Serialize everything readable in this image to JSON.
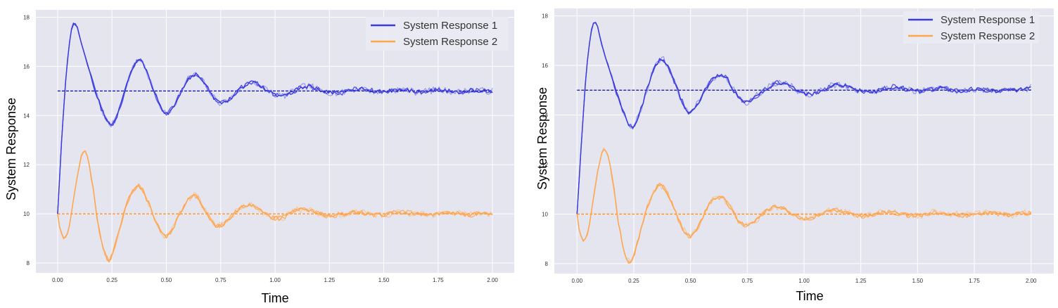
{
  "chart_data": [
    {
      "type": "line",
      "title": "",
      "xlabel": "Time",
      "ylabel": "System Response",
      "xlim": [
        -0.1,
        2.1
      ],
      "ylim": [
        7.6,
        18.3
      ],
      "xticks": [
        "0.00",
        "0.25",
        "0.50",
        "0.75",
        "1.00",
        "1.25",
        "1.50",
        "1.75",
        "2.00"
      ],
      "yticks": [
        "8",
        "10",
        "12",
        "14",
        "16",
        "18"
      ],
      "grid": true,
      "legend_position": "top-right",
      "series": [
        {
          "name": "System Response 1",
          "color": "#3a3ae0",
          "setpoint": 15,
          "points": [
            [
              0.0,
              10.0
            ],
            [
              0.02,
              13.2
            ],
            [
              0.04,
              15.8
            ],
            [
              0.06,
              17.4
            ],
            [
              0.075,
              17.8
            ],
            [
              0.09,
              17.6
            ],
            [
              0.11,
              16.9
            ],
            [
              0.14,
              16.0
            ],
            [
              0.17,
              15.1
            ],
            [
              0.2,
              14.3
            ],
            [
              0.23,
              13.7
            ],
            [
              0.25,
              13.6
            ],
            [
              0.27,
              13.9
            ],
            [
              0.3,
              14.7
            ],
            [
              0.33,
              15.6
            ],
            [
              0.36,
              16.2
            ],
            [
              0.38,
              16.3
            ],
            [
              0.4,
              16.0
            ],
            [
              0.43,
              15.3
            ],
            [
              0.46,
              14.6
            ],
            [
              0.49,
              14.1
            ],
            [
              0.51,
              14.1
            ],
            [
              0.54,
              14.5
            ],
            [
              0.57,
              15.0
            ],
            [
              0.6,
              15.5
            ],
            [
              0.63,
              15.7
            ],
            [
              0.66,
              15.5
            ],
            [
              0.69,
              15.1
            ],
            [
              0.72,
              14.7
            ],
            [
              0.75,
              14.5
            ],
            [
              0.78,
              14.6
            ],
            [
              0.81,
              14.8
            ],
            [
              0.84,
              15.1
            ],
            [
              0.88,
              15.35
            ],
            [
              0.92,
              15.3
            ],
            [
              0.96,
              15.05
            ],
            [
              1.0,
              14.85
            ],
            [
              1.04,
              14.8
            ],
            [
              1.08,
              14.95
            ],
            [
              1.12,
              15.15
            ],
            [
              1.16,
              15.2
            ],
            [
              1.2,
              15.05
            ],
            [
              1.25,
              14.95
            ],
            [
              1.3,
              14.9
            ],
            [
              1.35,
              15.05
            ],
            [
              1.4,
              15.1
            ],
            [
              1.45,
              15.0
            ],
            [
              1.5,
              14.95
            ],
            [
              1.55,
              15.05
            ],
            [
              1.6,
              15.05
            ],
            [
              1.65,
              14.95
            ],
            [
              1.7,
              15.0
            ],
            [
              1.75,
              15.05
            ],
            [
              1.8,
              15.0
            ],
            [
              1.85,
              14.95
            ],
            [
              1.9,
              15.05
            ],
            [
              1.95,
              15.0
            ],
            [
              2.0,
              15.0
            ]
          ]
        },
        {
          "name": "System Response 2",
          "color": "#ffa64d",
          "setpoint": 10,
          "points": [
            [
              0.0,
              10.0
            ],
            [
              0.01,
              9.4
            ],
            [
              0.03,
              8.95
            ],
            [
              0.05,
              9.3
            ],
            [
              0.07,
              10.4
            ],
            [
              0.09,
              11.5
            ],
            [
              0.11,
              12.4
            ],
            [
              0.125,
              12.6
            ],
            [
              0.14,
              12.3
            ],
            [
              0.16,
              11.2
            ],
            [
              0.18,
              9.9
            ],
            [
              0.2,
              8.9
            ],
            [
              0.22,
              8.3
            ],
            [
              0.235,
              8.1
            ],
            [
              0.25,
              8.3
            ],
            [
              0.28,
              9.2
            ],
            [
              0.31,
              10.2
            ],
            [
              0.34,
              10.9
            ],
            [
              0.37,
              11.2
            ],
            [
              0.39,
              11.0
            ],
            [
              0.42,
              10.4
            ],
            [
              0.45,
              9.7
            ],
            [
              0.48,
              9.2
            ],
            [
              0.5,
              9.05
            ],
            [
              0.53,
              9.4
            ],
            [
              0.56,
              10.0
            ],
            [
              0.59,
              10.5
            ],
            [
              0.62,
              10.75
            ],
            [
              0.64,
              10.7
            ],
            [
              0.67,
              10.3
            ],
            [
              0.7,
              9.8
            ],
            [
              0.73,
              9.5
            ],
            [
              0.76,
              9.55
            ],
            [
              0.79,
              9.8
            ],
            [
              0.82,
              10.1
            ],
            [
              0.86,
              10.35
            ],
            [
              0.9,
              10.35
            ],
            [
              0.94,
              10.1
            ],
            [
              0.98,
              9.85
            ],
            [
              1.02,
              9.8
            ],
            [
              1.06,
              9.95
            ],
            [
              1.1,
              10.15
            ],
            [
              1.14,
              10.2
            ],
            [
              1.18,
              10.1
            ],
            [
              1.22,
              9.95
            ],
            [
              1.26,
              9.9
            ],
            [
              1.3,
              10.0
            ],
            [
              1.35,
              10.05
            ],
            [
              1.4,
              10.05
            ],
            [
              1.45,
              9.95
            ],
            [
              1.5,
              9.95
            ],
            [
              1.55,
              10.05
            ],
            [
              1.6,
              10.05
            ],
            [
              1.65,
              10.0
            ],
            [
              1.7,
              9.95
            ],
            [
              1.75,
              10.0
            ],
            [
              1.8,
              10.05
            ],
            [
              1.85,
              10.0
            ],
            [
              1.9,
              9.95
            ],
            [
              1.95,
              10.05
            ],
            [
              2.0,
              10.0
            ]
          ]
        }
      ]
    },
    {
      "type": "line",
      "title": "",
      "xlabel": "Time",
      "ylabel": "System Response",
      "xlim": [
        -0.1,
        2.1
      ],
      "ylim": [
        7.6,
        18.3
      ],
      "xticks": [
        "0.00",
        "0.25",
        "0.50",
        "0.75",
        "1.00",
        "1.25",
        "1.50",
        "1.75",
        "2.00"
      ],
      "yticks": [
        "8",
        "10",
        "12",
        "14",
        "16",
        "18"
      ],
      "grid": true,
      "legend_position": "top-right",
      "series": [
        {
          "name": "System Response 1",
          "color": "#3a3ae0",
          "setpoint": 15,
          "points": [
            [
              0.0,
              10.0
            ],
            [
              0.02,
              13.0
            ],
            [
              0.04,
              15.7
            ],
            [
              0.06,
              17.3
            ],
            [
              0.075,
              17.8
            ],
            [
              0.09,
              17.6
            ],
            [
              0.11,
              16.8
            ],
            [
              0.14,
              15.9
            ],
            [
              0.17,
              15.0
            ],
            [
              0.2,
              14.2
            ],
            [
              0.23,
              13.6
            ],
            [
              0.245,
              13.5
            ],
            [
              0.27,
              13.9
            ],
            [
              0.3,
              14.8
            ],
            [
              0.33,
              15.7
            ],
            [
              0.36,
              16.2
            ],
            [
              0.38,
              16.25
            ],
            [
              0.4,
              16.0
            ],
            [
              0.43,
              15.3
            ],
            [
              0.46,
              14.6
            ],
            [
              0.49,
              14.1
            ],
            [
              0.51,
              14.15
            ],
            [
              0.54,
              14.6
            ],
            [
              0.57,
              15.1
            ],
            [
              0.6,
              15.5
            ],
            [
              0.63,
              15.65
            ],
            [
              0.66,
              15.5
            ],
            [
              0.69,
              15.0
            ],
            [
              0.72,
              14.6
            ],
            [
              0.75,
              14.5
            ],
            [
              0.78,
              14.7
            ],
            [
              0.81,
              14.9
            ],
            [
              0.84,
              15.1
            ],
            [
              0.88,
              15.3
            ],
            [
              0.92,
              15.3
            ],
            [
              0.96,
              15.05
            ],
            [
              1.0,
              14.85
            ],
            [
              1.04,
              14.85
            ],
            [
              1.08,
              15.0
            ],
            [
              1.12,
              15.2
            ],
            [
              1.16,
              15.25
            ],
            [
              1.2,
              15.1
            ],
            [
              1.25,
              14.95
            ],
            [
              1.3,
              14.9
            ],
            [
              1.35,
              15.05
            ],
            [
              1.4,
              15.15
            ],
            [
              1.45,
              15.05
            ],
            [
              1.5,
              14.95
            ],
            [
              1.55,
              15.0
            ],
            [
              1.6,
              15.1
            ],
            [
              1.65,
              15.0
            ],
            [
              1.7,
              14.95
            ],
            [
              1.75,
              15.05
            ],
            [
              1.8,
              15.0
            ],
            [
              1.85,
              14.95
            ],
            [
              1.9,
              15.05
            ],
            [
              1.95,
              15.0
            ],
            [
              2.0,
              15.1
            ]
          ]
        },
        {
          "name": "System Response 2",
          "color": "#ffa64d",
          "setpoint": 10,
          "points": [
            [
              0.0,
              10.0
            ],
            [
              0.01,
              9.3
            ],
            [
              0.03,
              8.85
            ],
            [
              0.05,
              9.3
            ],
            [
              0.07,
              10.5
            ],
            [
              0.09,
              11.7
            ],
            [
              0.11,
              12.5
            ],
            [
              0.12,
              12.65
            ],
            [
              0.14,
              12.3
            ],
            [
              0.16,
              11.2
            ],
            [
              0.18,
              9.8
            ],
            [
              0.2,
              8.8
            ],
            [
              0.215,
              8.2
            ],
            [
              0.23,
              8.05
            ],
            [
              0.25,
              8.3
            ],
            [
              0.28,
              9.3
            ],
            [
              0.31,
              10.3
            ],
            [
              0.34,
              10.95
            ],
            [
              0.36,
              11.2
            ],
            [
              0.39,
              11.0
            ],
            [
              0.42,
              10.4
            ],
            [
              0.45,
              9.7
            ],
            [
              0.48,
              9.2
            ],
            [
              0.5,
              9.1
            ],
            [
              0.53,
              9.4
            ],
            [
              0.56,
              10.0
            ],
            [
              0.59,
              10.5
            ],
            [
              0.62,
              10.7
            ],
            [
              0.65,
              10.6
            ],
            [
              0.68,
              10.2
            ],
            [
              0.71,
              9.75
            ],
            [
              0.74,
              9.5
            ],
            [
              0.77,
              9.6
            ],
            [
              0.8,
              9.85
            ],
            [
              0.83,
              10.1
            ],
            [
              0.87,
              10.3
            ],
            [
              0.91,
              10.25
            ],
            [
              0.95,
              10.0
            ],
            [
              0.99,
              9.8
            ],
            [
              1.03,
              9.85
            ],
            [
              1.07,
              10.0
            ],
            [
              1.11,
              10.15
            ],
            [
              1.15,
              10.15
            ],
            [
              1.19,
              10.05
            ],
            [
              1.23,
              9.95
            ],
            [
              1.27,
              9.9
            ],
            [
              1.31,
              10.0
            ],
            [
              1.36,
              10.1
            ],
            [
              1.41,
              10.05
            ],
            [
              1.46,
              9.95
            ],
            [
              1.51,
              9.95
            ],
            [
              1.56,
              10.05
            ],
            [
              1.61,
              10.05
            ],
            [
              1.66,
              10.0
            ],
            [
              1.71,
              9.95
            ],
            [
              1.76,
              10.0
            ],
            [
              1.81,
              10.05
            ],
            [
              1.86,
              10.0
            ],
            [
              1.91,
              9.95
            ],
            [
              1.96,
              10.05
            ],
            [
              2.0,
              10.05
            ]
          ]
        }
      ]
    }
  ]
}
